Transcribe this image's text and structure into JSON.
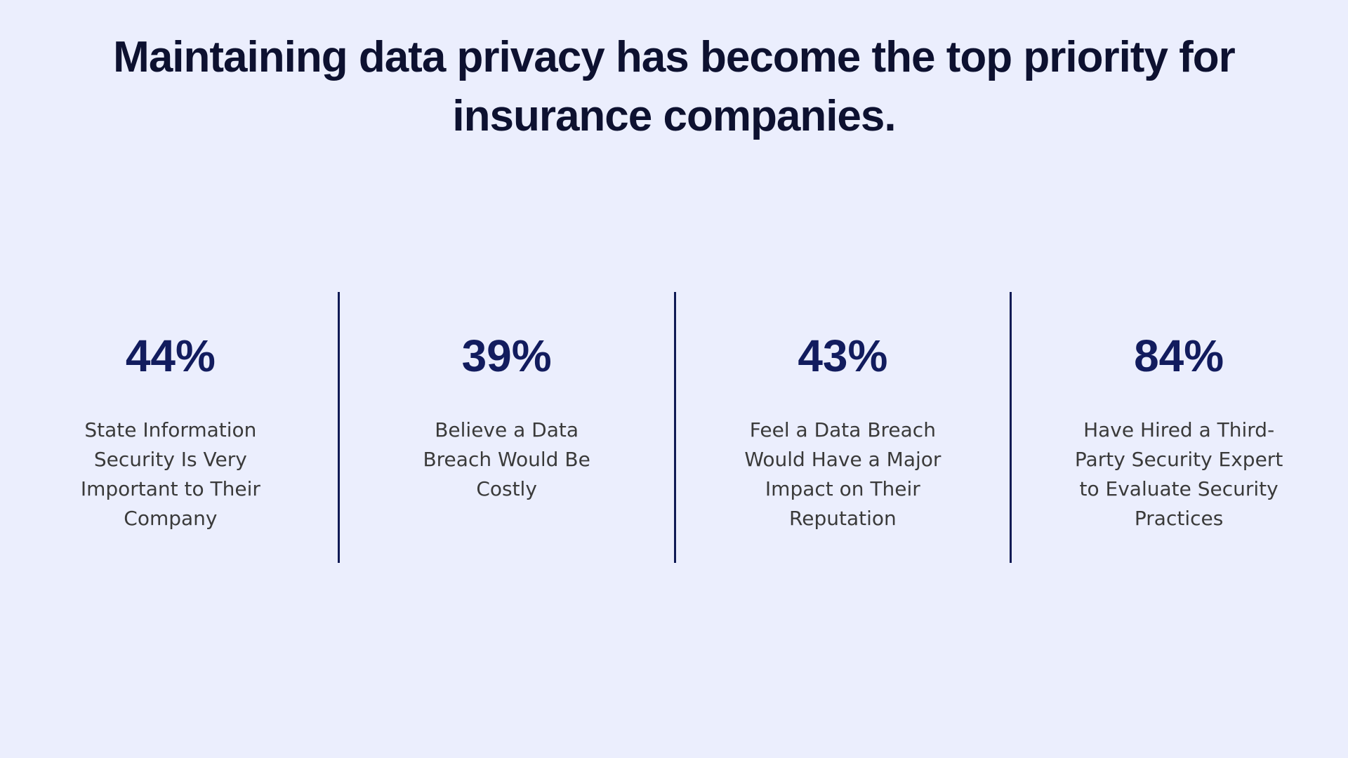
{
  "header": {
    "title": "Maintaining data privacy has become the top priority for insurance companies."
  },
  "stats": [
    {
      "value": "44%",
      "label": "State Information Security Is Very Important to Their Company"
    },
    {
      "value": "39%",
      "label": "Believe a Data Breach Would Be Costly"
    },
    {
      "value": "43%",
      "label": "Feel a Data Breach Would Have a Major Impact on Their Reputation"
    },
    {
      "value": "84%",
      "label": "Have Hired a Third-Party Security Expert to Evaluate Security Practices"
    }
  ]
}
